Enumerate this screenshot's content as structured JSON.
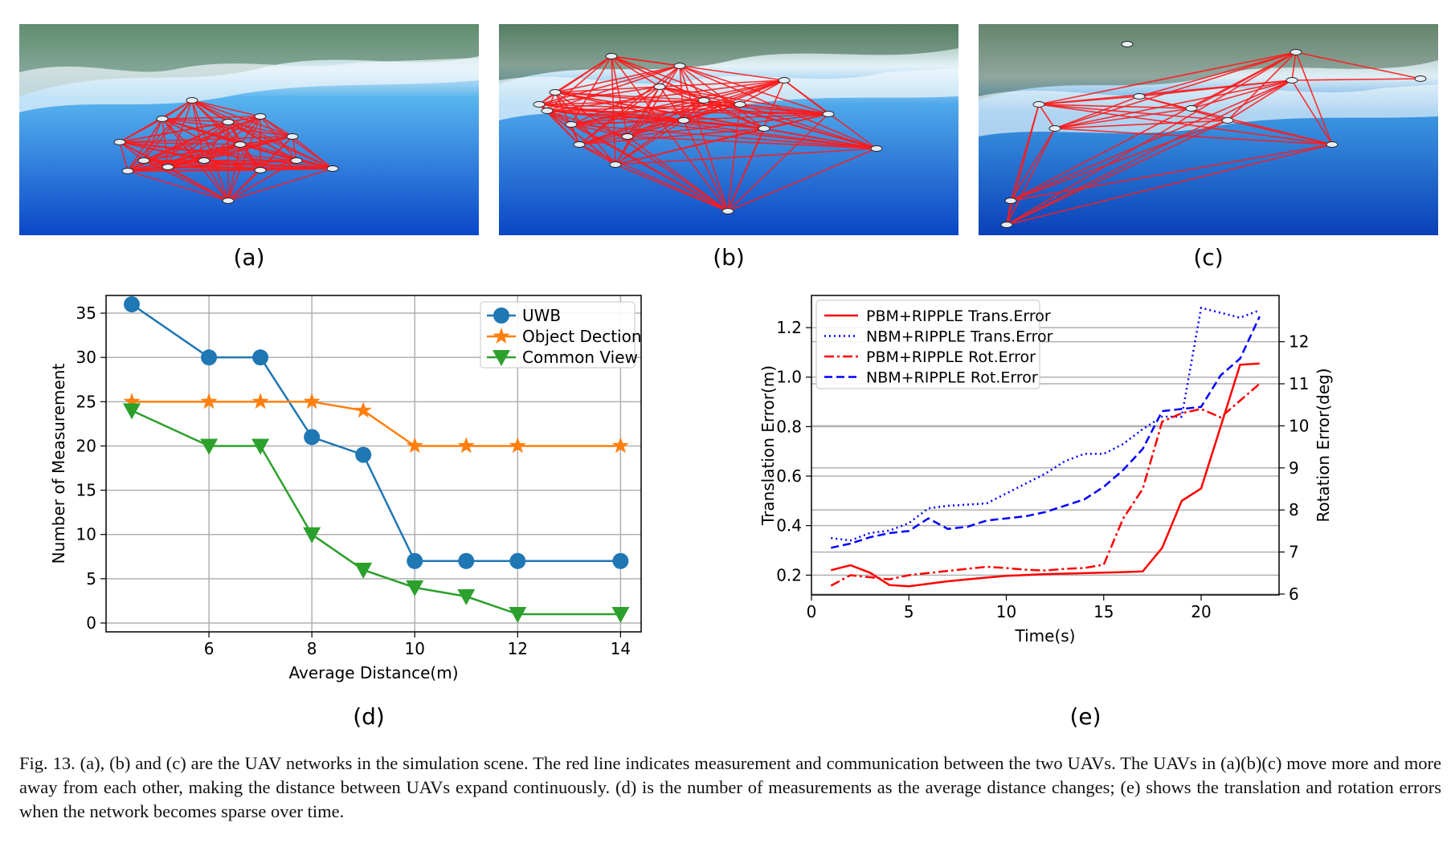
{
  "panels": {
    "a": "(a)",
    "b": "(b)",
    "c": "(c)",
    "d": "(d)",
    "e": "(e)"
  },
  "colors": {
    "network_line": "#ff1a1a",
    "water": "#1565e0",
    "uwb": "#1f77b4",
    "object": "#ff7f0e",
    "common": "#2ca02c",
    "pbm": "#ff0000",
    "nbm": "#0000ff"
  },
  "caption": "Fig. 13.   (a), (b) and (c) are the UAV networks in the simulation scene. The red line indicates measurement and communication between the two UAVs. The UAVs in (a)(b)(c) move more and more away from each other, making the distance between UAVs expand continuously. (d) is the number of measurements as the average distance changes; (e) shows the translation and rotation errors when the network becomes sparse over time.",
  "chart_data": [
    {
      "type": "line",
      "xlabel": "Average Distance(m)",
      "ylabel": "Number of Measurement",
      "xlim": [
        4.0,
        14.4
      ],
      "ylim": [
        -1,
        37
      ],
      "xticks": [
        6,
        8,
        10,
        12,
        14
      ],
      "yticks": [
        0,
        5,
        10,
        15,
        20,
        25,
        30,
        35
      ],
      "grid": true,
      "legend_position": "top-right",
      "series": [
        {
          "name": "UWB",
          "marker": "circle",
          "x": [
            4.5,
            6,
            7,
            8,
            9,
            10,
            11,
            12,
            14
          ],
          "y": [
            36,
            30,
            30,
            21,
            19,
            7,
            7,
            7,
            7
          ]
        },
        {
          "name": "Object Dection",
          "marker": "star",
          "x": [
            4.5,
            6,
            7,
            8,
            9,
            10,
            11,
            12,
            14
          ],
          "y": [
            25,
            25,
            25,
            25,
            24,
            20,
            20,
            20,
            20
          ]
        },
        {
          "name": "Common View",
          "marker": "triangle-down",
          "x": [
            4.5,
            6,
            7,
            8,
            9,
            10,
            11,
            12,
            14
          ],
          "y": [
            24,
            20,
            20,
            10,
            6,
            4,
            3,
            1,
            1
          ]
        }
      ]
    },
    {
      "type": "line",
      "xlabel": "Time(s)",
      "ylabel": "Translation Error(m)",
      "ylabel_right": "Rotation Error(deg)",
      "xlim": [
        0,
        24
      ],
      "ylim": [
        0.12,
        1.33
      ],
      "ylim_right": [
        5.98,
        13.1
      ],
      "xticks": [
        0,
        5,
        10,
        15,
        20
      ],
      "yticks": [
        0.2,
        0.4,
        0.6,
        0.8,
        1.0,
        1.2
      ],
      "yticks_right": [
        6,
        7,
        8,
        9,
        10,
        11,
        12
      ],
      "grid": true,
      "legend_position": "top-left",
      "series": [
        {
          "name": "PBM+RIPPLE Trans.Error",
          "axis": "left",
          "style": "solid",
          "x": [
            1,
            2,
            3,
            4,
            5,
            6,
            7,
            8,
            9,
            10,
            12,
            14,
            16,
            17,
            18,
            19,
            20,
            21,
            22,
            23
          ],
          "y": [
            0.22,
            0.24,
            0.21,
            0.16,
            0.155,
            0.165,
            0.175,
            0.183,
            0.19,
            0.197,
            0.204,
            0.208,
            0.212,
            0.215,
            0.31,
            0.5,
            0.55,
            0.8,
            1.05,
            1.055
          ]
        },
        {
          "name": "NBM+RIPPLE Trans.Error",
          "axis": "left",
          "style": "dotted",
          "x": [
            1,
            2,
            3,
            4,
            5,
            6,
            7,
            8,
            9,
            10,
            11,
            12,
            13,
            14,
            15,
            16,
            17,
            18,
            19,
            20,
            21,
            22,
            23
          ],
          "y": [
            0.35,
            0.34,
            0.37,
            0.38,
            0.41,
            0.47,
            0.48,
            0.485,
            0.49,
            0.53,
            0.57,
            0.61,
            0.66,
            0.69,
            0.69,
            0.73,
            0.79,
            0.84,
            0.84,
            1.28,
            1.26,
            1.24,
            1.27
          ]
        },
        {
          "name": "PBM+RIPPLE Rot.Error",
          "axis": "right",
          "style": "dashdot",
          "x": [
            1,
            2,
            3,
            4,
            5,
            6,
            7,
            8,
            9,
            10,
            11,
            12,
            13,
            14,
            15,
            16,
            17,
            18,
            19,
            20,
            21,
            22,
            23
          ],
          "y": [
            6.2,
            6.45,
            6.4,
            6.35,
            6.45,
            6.5,
            6.55,
            6.6,
            6.65,
            6.62,
            6.58,
            6.56,
            6.6,
            6.62,
            6.7,
            7.8,
            8.5,
            10.1,
            10.3,
            10.4,
            10.2,
            10.6,
            11.0
          ]
        },
        {
          "name": "NBM+RIPPLE Rot.Error",
          "axis": "right",
          "style": "dashed",
          "x": [
            1,
            2,
            3,
            4,
            5,
            6,
            7,
            8,
            9,
            10,
            11,
            12,
            13,
            14,
            15,
            16,
            17,
            18,
            19,
            20,
            21,
            22,
            23
          ],
          "y": [
            7.1,
            7.2,
            7.35,
            7.45,
            7.5,
            7.8,
            7.55,
            7.6,
            7.75,
            7.8,
            7.85,
            7.95,
            8.1,
            8.25,
            8.55,
            8.95,
            9.45,
            10.35,
            10.4,
            10.45,
            11.2,
            11.6,
            12.6
          ]
        }
      ]
    }
  ]
}
